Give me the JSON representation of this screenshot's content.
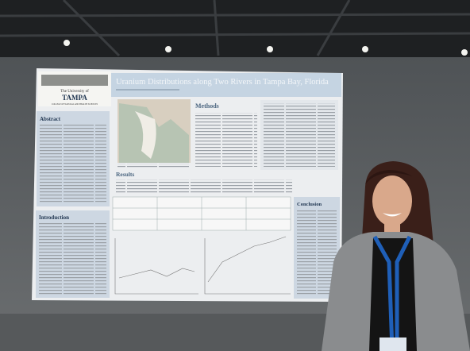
{
  "poster": {
    "title": "Uranium Distributions along Two Rivers in Tampa Bay, Florida",
    "university": {
      "line1": "The University of",
      "name": "TAMPA",
      "college": "COLLEGE OF NATURAL AND HEALTH SCIENCES"
    },
    "sections": {
      "abstract": "Abstract",
      "introduction": "Introduction",
      "methods": "Methods",
      "results": "Results",
      "conclusion": "Conclusion"
    }
  }
}
